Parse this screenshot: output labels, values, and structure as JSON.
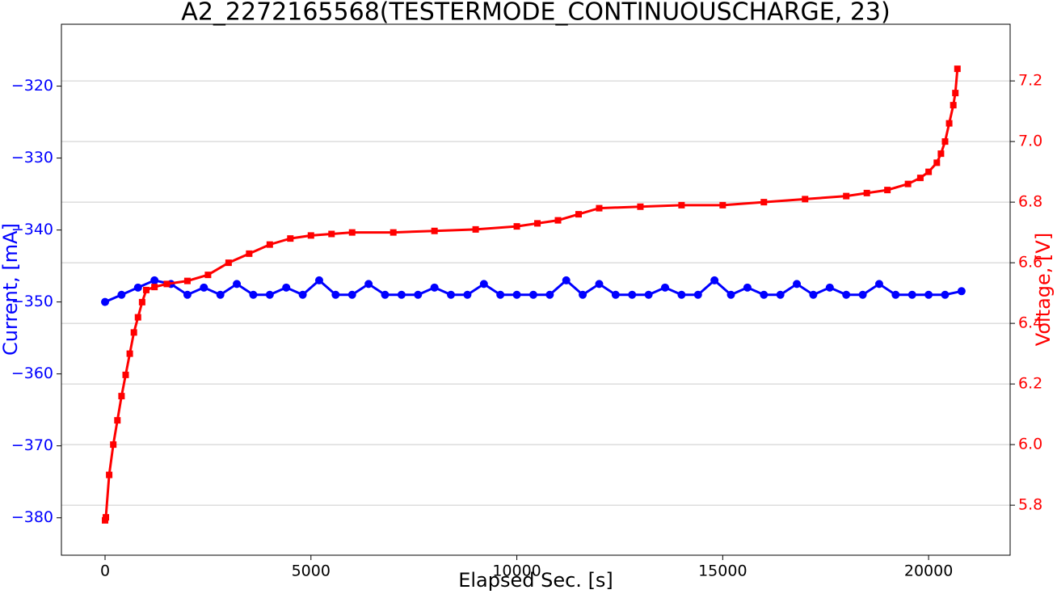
{
  "chart_data": {
    "type": "line",
    "title": "A2_2272165568(TESTERMODE_CONTINUOUSCHARGE, 23)",
    "x_label": "Elapsed Sec. [s]",
    "y_label": "Current, [mA]",
    "y2_label": "Voltage, [V]",
    "xlim": [
      -1060,
      21980
    ],
    "xticks": [
      0,
      5000,
      10000,
      15000,
      20000
    ],
    "ylim": [
      -385.2,
      -311.4
    ],
    "yticks": [
      {
        "value": -320,
        "label": "−320"
      },
      {
        "value": -330,
        "label": "−330"
      },
      {
        "value": -340,
        "label": "−340"
      },
      {
        "value": -350,
        "label": "−350"
      },
      {
        "value": -360,
        "label": "−360"
      },
      {
        "value": -370,
        "label": "−370"
      },
      {
        "value": -380,
        "label": "−380"
      }
    ],
    "y2lim": [
      5.635,
      7.387
    ],
    "y2ticks": [
      5.8,
      {
        "value": 6,
        "label": "6.0"
      },
      6.2,
      6.4,
      6.6,
      6.8,
      {
        "value": 7,
        "label": "7.0"
      },
      7.2
    ],
    "grid": "y2",
    "series": [
      {
        "name": "Current",
        "color": "#0000ff",
        "marker": "circle",
        "axis": "y",
        "x": [
          0,
          400,
          800,
          1200,
          1600,
          2000,
          2400,
          2800,
          3200,
          3600,
          4000,
          4400,
          4800,
          5200,
          5600,
          6000,
          6400,
          6800,
          7200,
          7600,
          8000,
          8400,
          8800,
          9200,
          9600,
          10000,
          10400,
          10800,
          11200,
          11600,
          12000,
          12400,
          12800,
          13200,
          13600,
          14000,
          14400,
          14800,
          15200,
          15600,
          16000,
          16400,
          16800,
          17200,
          17600,
          18000,
          18400,
          18800,
          19200,
          19600,
          20000,
          20400,
          20800
        ],
        "values": [
          -350,
          -349,
          -348,
          -347,
          -347.5,
          -349,
          -348,
          -349,
          -347.5,
          -349,
          -349,
          -348,
          -349,
          -347,
          -349,
          -349,
          -347.5,
          -349,
          -349,
          -349,
          -348,
          -349,
          -349,
          -347.5,
          -349,
          -349,
          -349,
          -349,
          -347,
          -349,
          -347.5,
          -349,
          -349,
          -349,
          -348,
          -349,
          -349,
          -347,
          -349,
          -348,
          -349,
          -349,
          -347.5,
          -349,
          -348,
          -349,
          -349,
          -347.5,
          -349,
          -349,
          -349,
          -349,
          -348.5
        ]
      },
      {
        "name": "Voltage",
        "color": "#ff0000",
        "marker": "square",
        "axis": "y2",
        "x": [
          0,
          20,
          100,
          200,
          300,
          400,
          500,
          600,
          700,
          800,
          900,
          1000,
          1200,
          1500,
          2000,
          2500,
          3000,
          3500,
          4000,
          4500,
          5000,
          5500,
          6000,
          7000,
          8000,
          9000,
          10000,
          10500,
          11000,
          11500,
          12000,
          13000,
          14000,
          15000,
          16000,
          17000,
          18000,
          18500,
          19000,
          19500,
          19800,
          20000,
          20200,
          20300,
          20400,
          20500,
          20600,
          20650,
          20700
        ],
        "values": [
          5.75,
          5.76,
          5.9,
          6.0,
          6.08,
          6.16,
          6.23,
          6.3,
          6.37,
          6.42,
          6.47,
          6.51,
          6.52,
          6.53,
          6.54,
          6.56,
          6.6,
          6.63,
          6.66,
          6.68,
          6.69,
          6.695,
          6.7,
          6.7,
          6.705,
          6.71,
          6.72,
          6.73,
          6.74,
          6.76,
          6.78,
          6.785,
          6.79,
          6.79,
          6.8,
          6.81,
          6.82,
          6.83,
          6.84,
          6.86,
          6.88,
          6.9,
          6.93,
          6.96,
          7.0,
          7.06,
          7.12,
          7.16,
          7.24
        ]
      }
    ]
  }
}
